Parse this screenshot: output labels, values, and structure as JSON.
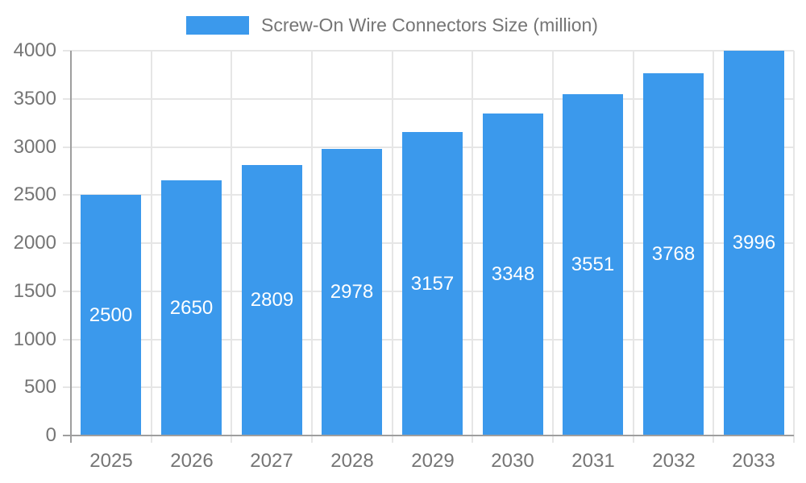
{
  "legend": {
    "label": "Screw-On Wire Connectors Size (million)"
  },
  "chart_data": {
    "type": "bar",
    "title": "Screw-On Wire Connectors Size (million)",
    "categories": [
      "2025",
      "2026",
      "2027",
      "2028",
      "2029",
      "2030",
      "2031",
      "2032",
      "2033"
    ],
    "series": [
      {
        "name": "Screw-On Wire Connectors Size (million)",
        "values": [
          2500,
          2650,
          2809,
          2978,
          3157,
          3348,
          3551,
          3768,
          3996
        ]
      }
    ],
    "bar_labels": [
      "2500",
      "2650",
      "2809",
      "2978",
      "3157",
      "3348",
      "3551",
      "3768",
      "3996"
    ],
    "xlabel": "",
    "ylabel": "",
    "ylim": [
      0,
      4000
    ],
    "yticks": [
      0,
      500,
      1000,
      1500,
      2000,
      2500,
      3000,
      3500,
      4000
    ],
    "grid": true,
    "legend_position": "top",
    "bar_label_position": "inside-middle",
    "colors": {
      "bar": "#3b99ec",
      "axis": "#9e9e9e",
      "grid": "#e6e6e6",
      "tick_text": "#757575",
      "bar_label_text": "#ffffff",
      "background": "#ffffff"
    }
  }
}
